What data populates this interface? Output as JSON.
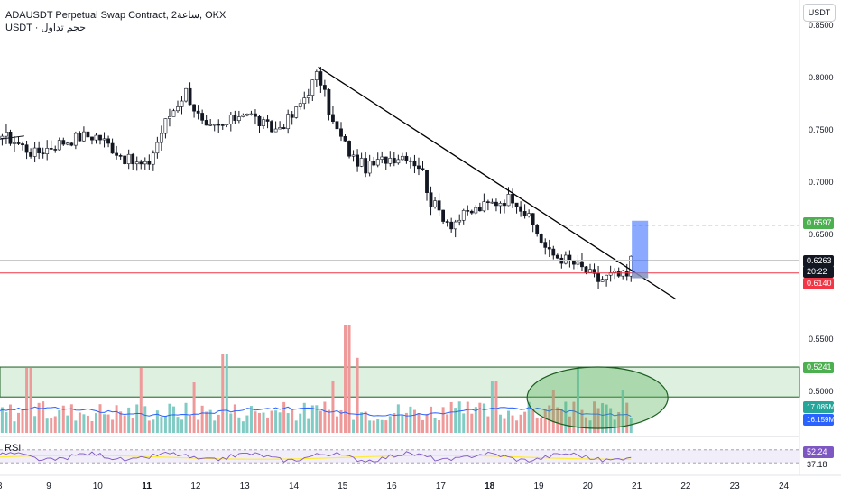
{
  "header": {
    "title": "ADAUSDT Perpetual Swap Contract, 2ساعة, OKX",
    "subtitle": "USDT · حجم تداول"
  },
  "currency_button": "USDT",
  "rsi_label": "RSI",
  "colors": {
    "up": "#26a69a",
    "down": "#ef5350",
    "green_tag": "#4caf50",
    "red_tag": "#f23645",
    "blue_tag": "#2962ff",
    "trendline": "#000000",
    "rsi_line": "#7e57c2",
    "rsi_ma": "#ffeb3b"
  },
  "price_tags": {
    "target": "0.6597",
    "last": "0.6263",
    "countdown": "20:22",
    "stop": "0.6140",
    "zone_top": "0.5241",
    "vol_a": "17.085M",
    "vol_b": "16.159M",
    "rsi_a": "52.24",
    "rsi_b": "37.18"
  },
  "chart_data": {
    "type": "candlestick",
    "title": "ADAUSDT Perpetual Swap Contract, 2ساعة, OKX",
    "y_ticks": [
      "0.8500",
      "0.8000",
      "0.7500",
      "0.7000",
      "0.6500",
      "0.5500",
      "0.5000"
    ],
    "x_ticks": [
      "8",
      "9",
      "10",
      "11",
      "12",
      "13",
      "14",
      "15",
      "16",
      "17",
      "18",
      "19",
      "20",
      "21",
      "22",
      "23",
      "24"
    ],
    "ylim": [
      0.47,
      0.86
    ],
    "levels": {
      "target": 0.6597,
      "last": 0.6263,
      "stop": 0.614,
      "zone_top": 0.5241,
      "zone_bottom": 0.4955
    },
    "trendline": [
      [
        14.5,
        0.811
      ],
      [
        21.8,
        0.589
      ]
    ],
    "anchors": [
      [
        7.8,
        0.752
      ],
      [
        8.3,
        0.74
      ],
      [
        8.7,
        0.728
      ],
      [
        9.2,
        0.738
      ],
      [
        9.7,
        0.745
      ],
      [
        10.0,
        0.745
      ],
      [
        10.6,
        0.722
      ],
      [
        11.0,
        0.715
      ],
      [
        11.4,
        0.76
      ],
      [
        11.8,
        0.788
      ],
      [
        12.2,
        0.75
      ],
      [
        12.6,
        0.755
      ],
      [
        13.0,
        0.77
      ],
      [
        13.3,
        0.758
      ],
      [
        13.6,
        0.75
      ],
      [
        14.0,
        0.765
      ],
      [
        14.5,
        0.805
      ],
      [
        14.8,
        0.757
      ],
      [
        15.2,
        0.724
      ],
      [
        15.5,
        0.714
      ],
      [
        15.9,
        0.724
      ],
      [
        16.3,
        0.727
      ],
      [
        16.6,
        0.715
      ],
      [
        16.8,
        0.682
      ],
      [
        17.2,
        0.661
      ],
      [
        17.6,
        0.672
      ],
      [
        18.0,
        0.68
      ],
      [
        18.5,
        0.687
      ],
      [
        18.9,
        0.658
      ],
      [
        19.2,
        0.633
      ],
      [
        19.6,
        0.626
      ],
      [
        19.9,
        0.618
      ],
      [
        20.2,
        0.607
      ],
      [
        20.5,
        0.612
      ],
      [
        20.8,
        0.61
      ],
      [
        20.9,
        0.63
      ]
    ],
    "volume_peaks": [
      [
        8.6,
        0.45
      ],
      [
        10.9,
        0.45
      ],
      [
        12.0,
        0.35
      ],
      [
        12.6,
        0.55
      ],
      [
        14.8,
        0.36
      ],
      [
        15.1,
        0.75
      ],
      [
        15.3,
        0.52
      ],
      [
        18.1,
        0.36
      ],
      [
        19.3,
        0.3
      ],
      [
        19.8,
        0.45
      ],
      [
        20.7,
        0.3
      ]
    ],
    "rsi": {
      "upper": 70,
      "lower": 30,
      "last": 52.24,
      "ma": 37.18
    }
  }
}
